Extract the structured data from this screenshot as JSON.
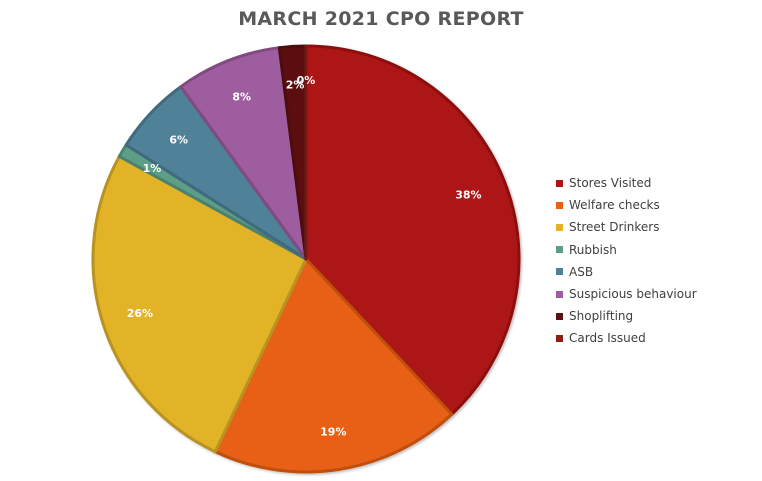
{
  "chart_data": {
    "type": "pie",
    "title": "MARCH 2021 CPO REPORT",
    "categories": [
      "Stores Visited",
      "Welfare checks",
      "Street Drinkers",
      "Rubbish",
      "ASB",
      "Suspicious behaviour",
      "Shoplifting",
      "Cards Issued"
    ],
    "values": [
      38,
      19,
      26,
      1,
      6,
      8,
      2,
      0
    ],
    "labels": [
      "38%",
      "19%",
      "26%",
      "1%",
      "6%",
      "8%",
      "2%",
      "0%"
    ],
    "colors": [
      "#ad1515",
      "#e86013",
      "#e2b327",
      "#5b9f86",
      "#4f8199",
      "#9d5d9f",
      "#5c1010",
      "#8b2016"
    ],
    "legend_position": "right"
  }
}
